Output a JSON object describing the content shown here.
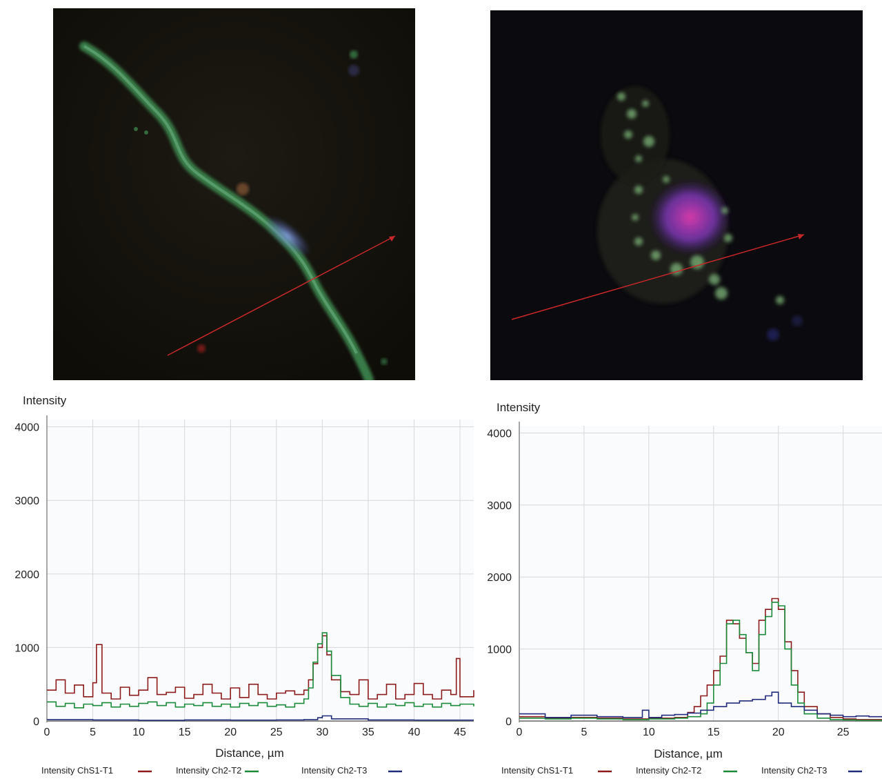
{
  "panels": [
    {
      "image": {
        "subject": "micrograph",
        "arrow_color": "#c8282a"
      },
      "chart_data": {
        "type": "line",
        "ylabel": "Intensity",
        "xlabel": "Distance, µm",
        "xlim": [
          0,
          46.5
        ],
        "ylim": [
          0,
          4100
        ],
        "x_ticks": [
          0,
          5,
          10,
          15,
          20,
          25,
          30,
          35,
          40,
          45
        ],
        "y_ticks": [
          0,
          1000,
          2000,
          3000,
          4000
        ],
        "grid": true,
        "legend_position": "bottom",
        "series": [
          {
            "name": "Intensity ChS1-T1",
            "color": "#8b1a1a",
            "x": [
              0,
              1,
              2,
              3,
              4,
              5,
              5.4,
              6,
              7,
              8,
              9,
              10,
              11,
              12,
              13,
              14,
              15,
              16,
              17,
              18,
              19,
              20,
              21,
              22,
              23,
              24,
              25,
              26,
              27,
              28,
              28.5,
              29,
              29.5,
              30,
              30.5,
              31,
              32,
              33,
              34,
              35,
              36,
              37,
              38,
              39,
              40,
              41,
              42,
              43,
              44,
              44.6,
              45,
              46.5
            ],
            "y": [
              420,
              560,
              380,
              490,
              330,
              520,
              1040,
              380,
              300,
              460,
              350,
              420,
              590,
              360,
              390,
              460,
              310,
              360,
              500,
              380,
              300,
              450,
              320,
              500,
              360,
              300,
              380,
              410,
              360,
              420,
              560,
              780,
              1000,
              1160,
              900,
              560,
              400,
              360,
              560,
              300,
              360,
              500,
              300,
              360,
              510,
              360,
              300,
              420,
              360,
              850,
              330,
              420
            ]
          },
          {
            "name": "Intensity Ch2-T2",
            "color": "#1a8a3a",
            "x": [
              0,
              1,
              2,
              3,
              4,
              5,
              6,
              7,
              8,
              9,
              10,
              11,
              12,
              13,
              14,
              15,
              16,
              17,
              18,
              19,
              20,
              21,
              22,
              23,
              24,
              25,
              26,
              27,
              28,
              28.5,
              29,
              29.5,
              30,
              30.5,
              31,
              32,
              33,
              34,
              35,
              36,
              37,
              38,
              39,
              40,
              41,
              42,
              43,
              44,
              45,
              46.5
            ],
            "y": [
              260,
              200,
              240,
              180,
              230,
              210,
              250,
              190,
              230,
              200,
              240,
              260,
              210,
              250,
              190,
              230,
              210,
              250,
              200,
              230,
              190,
              240,
              210,
              250,
              200,
              220,
              190,
              240,
              300,
              450,
              800,
              1050,
              1200,
              950,
              620,
              320,
              230,
              200,
              240,
              190,
              230,
              210,
              250,
              200,
              230,
              190,
              240,
              210,
              230,
              200
            ]
          },
          {
            "name": "Intensity Ch2-T3",
            "color": "#1f2a7a",
            "x": [
              0,
              5,
              10,
              15,
              20,
              25,
              28,
              29.5,
              30,
              31,
              35,
              40,
              46.5
            ],
            "y": [
              20,
              15,
              10,
              15,
              12,
              15,
              20,
              45,
              70,
              30,
              15,
              12,
              12
            ]
          }
        ]
      }
    },
    {
      "image": {
        "subject": "micrograph",
        "arrow_color": "#c8282a"
      },
      "chart_data": {
        "type": "line",
        "ylabel": "Intensity",
        "xlabel": "Distance, µm",
        "xlim": [
          0,
          28
        ],
        "ylim": [
          0,
          4100
        ],
        "x_ticks": [
          0,
          5,
          10,
          15,
          20,
          25
        ],
        "y_ticks": [
          0,
          1000,
          2000,
          3000,
          4000
        ],
        "grid": true,
        "legend_position": "bottom",
        "series": [
          {
            "name": "Intensity ChS1-T1",
            "color": "#8b1a1a",
            "x": [
              0,
              2,
              4,
              6,
              8,
              10,
              12,
              13,
              13.5,
              14,
              14.5,
              15,
              15.5,
              16,
              16.5,
              17,
              17.5,
              18,
              18.5,
              19,
              19.5,
              20,
              20.5,
              21,
              21.5,
              22,
              23,
              24,
              25,
              26,
              28
            ],
            "y": [
              60,
              40,
              50,
              40,
              30,
              40,
              50,
              120,
              200,
              350,
              500,
              700,
              900,
              1400,
              1350,
              1150,
              950,
              800,
              1400,
              1550,
              1700,
              1550,
              1100,
              700,
              400,
              200,
              100,
              50,
              30,
              20,
              10
            ]
          },
          {
            "name": "Intensity Ch2-T2",
            "color": "#1a8a3a",
            "x": [
              0,
              2,
              4,
              6,
              8,
              10,
              12,
              13,
              14,
              14.5,
              15,
              15.5,
              16,
              16.5,
              17,
              17.5,
              18,
              18.5,
              19,
              19.5,
              20,
              20.5,
              21,
              21.5,
              22,
              23,
              24,
              25,
              26,
              28
            ],
            "y": [
              40,
              30,
              40,
              30,
              20,
              30,
              40,
              60,
              100,
              250,
              500,
              800,
              1350,
              1400,
              1200,
              950,
              700,
              1200,
              1450,
              1650,
              1600,
              1000,
              500,
              250,
              100,
              40,
              20,
              15,
              10,
              5
            ]
          },
          {
            "name": "Intensity Ch2-T3",
            "color": "#1f2a7a",
            "x": [
              0,
              2,
              4,
              6,
              8,
              9.5,
              10,
              11,
              12,
              13,
              14,
              15,
              16,
              17,
              18,
              19,
              19.5,
              20,
              21,
              22,
              23,
              24,
              25,
              26,
              27,
              28
            ],
            "y": [
              100,
              50,
              80,
              60,
              50,
              150,
              50,
              80,
              90,
              110,
              150,
              200,
              250,
              280,
              300,
              350,
              400,
              250,
              200,
              150,
              100,
              80,
              60,
              70,
              60,
              50
            ]
          }
        ]
      }
    }
  ]
}
